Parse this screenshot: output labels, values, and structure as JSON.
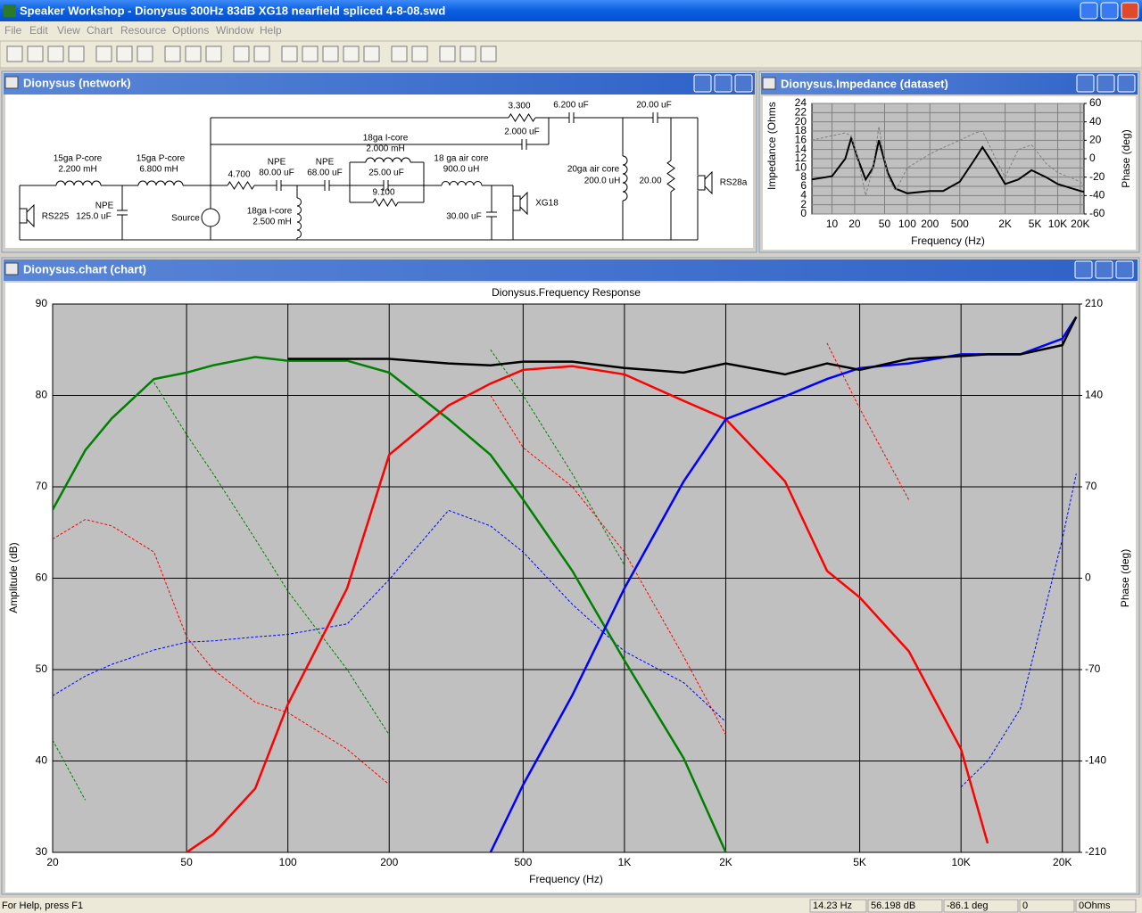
{
  "window": {
    "title": "Speaker Workshop - Dionysus 300Hz 83dB  XG18 nearfield spliced 4-8-08.swd",
    "menu": [
      "File",
      "Edit",
      "View",
      "Chart",
      "Resource",
      "Options",
      "Window",
      "Help"
    ],
    "status": [
      "For Help, press F1",
      "14.23 Hz",
      "56.198 dB",
      "-86.1 deg",
      "0",
      "0Ohms"
    ]
  },
  "panels": {
    "network": "Dionysus (network)",
    "impedance": "Dionysus.Impedance (dataset)",
    "chart": "Dionysus.chart (chart)"
  },
  "network": {
    "labels": [
      "15ga P-core",
      "2.200 mH",
      "15ga P-core",
      "6.800 mH",
      "NPE",
      "125.0 uF",
      "RS225",
      "Source",
      "4.700",
      "NPE",
      "80.00 uF",
      "NPE",
      "68.00 uF",
      "18ga I-core",
      "2.500 mH",
      "18ga I-core",
      "2.000 mH",
      "25.00 uF",
      "9.100",
      "18 ga air core",
      "900.0 uH",
      "30.00 uF",
      "XG18",
      "3.300",
      "2.000 uF",
      "6.200 uF",
      "20.00 uF",
      "20ga air core",
      "200.0 uH",
      "20.00",
      "RS28a"
    ]
  },
  "chart_data": [
    {
      "type": "line",
      "xlabel": "Frequency (Hz)",
      "ylabel": "Impedance (Ohms",
      "y2label": "Phase (deg)",
      "xscale": "log",
      "xlim": [
        5.4,
        22400
      ],
      "ylim": [
        0,
        24
      ],
      "y2lim": [
        -60,
        60
      ],
      "xticks": [
        10,
        20,
        50,
        100,
        200,
        500,
        {
          "value": 2000,
          "label": "2K"
        },
        {
          "value": 5000,
          "label": "5K"
        },
        {
          "value": 10000,
          "label": "10K"
        },
        {
          "value": 20000,
          "label": "20K"
        }
      ],
      "yticks": [
        0,
        2,
        4,
        6,
        8,
        10,
        12,
        14,
        16,
        18,
        20,
        22,
        24
      ],
      "y2ticks": [
        -60,
        -40,
        -20,
        0,
        20,
        40,
        60
      ],
      "grid": true,
      "grid_color": "#808080",
      "background": "#c0c0c0",
      "x": [
        5.4,
        10,
        15,
        18,
        22,
        28,
        35,
        42,
        55,
        70,
        100,
        200,
        300,
        500,
        800,
        1000,
        1500,
        2000,
        3000,
        4500,
        7000,
        10000,
        20000,
        22400
      ],
      "series": [
        {
          "color": "#000000",
          "linestyle": "solid",
          "values": [
            7.5,
            8.2,
            12,
            16.5,
            12,
            7.5,
            10,
            16,
            9,
            5.5,
            4.5,
            5,
            5,
            7,
            12,
            14.5,
            10,
            6.5,
            7.5,
            9.5,
            8,
            6.5,
            5,
            4.8
          ]
        },
        {
          "color": "#808080",
          "linestyle": "dashed",
          "axis": "y2",
          "values": [
            20,
            25,
            28,
            25,
            0,
            -40,
            -10,
            35,
            -20,
            -35,
            -10,
            5,
            12,
            20,
            28,
            30,
            0,
            -20,
            10,
            15,
            -5,
            -15,
            -25,
            -30
          ]
        }
      ]
    },
    {
      "type": "line",
      "title": "Dionysus.Frequency Response",
      "xlabel": "Frequency (Hz)",
      "ylabel": "Amplitude (dB)",
      "y2label": "Phase (deg)",
      "xscale": "log",
      "xlim": [
        20,
        22500
      ],
      "ylim": [
        30,
        90
      ],
      "y2lim": [
        -210,
        210
      ],
      "xticks": [
        20,
        50,
        100,
        200,
        500,
        {
          "value": 1000,
          "label": "1K"
        },
        {
          "value": 2000,
          "label": "2K"
        },
        {
          "value": 5000,
          "label": "5K"
        },
        {
          "value": 10000,
          "label": "10K"
        },
        {
          "value": 20000,
          "label": "20K"
        }
      ],
      "yticks": [
        30,
        40,
        50,
        60,
        70,
        80,
        90
      ],
      "y2ticks": [
        -210,
        -140,
        -70,
        0,
        70,
        140,
        210
      ],
      "grid": true,
      "grid_color": "#000000",
      "background": "#c0c0c0",
      "x": [
        20,
        25,
        30,
        40,
        50,
        60,
        80,
        100,
        150,
        200,
        300,
        400,
        500,
        700,
        1000,
        1500,
        2000,
        3000,
        4000,
        5000,
        7000,
        10000,
        12000,
        15000,
        20000,
        22000
      ],
      "series": [
        {
          "color": "#008000",
          "linestyle": "dashed",
          "axis": "y2",
          "values": [
            -124,
            -170,
            null,
            150,
            110,
            80,
            30,
            -10,
            -70,
            -120,
            null,
            175,
            140,
            80,
            10,
            null,
            null,
            null,
            null,
            null,
            null,
            null,
            null,
            null,
            null,
            null
          ]
        },
        {
          "color": "#ff0000",
          "linestyle": "dashed",
          "axis": "y2",
          "values": [
            30,
            45,
            40,
            20,
            -45,
            -70,
            -95,
            -103,
            -131,
            -158,
            null,
            140,
            100,
            70,
            20,
            -60,
            -120,
            null,
            180,
            130,
            60,
            null,
            null,
            null,
            null,
            null
          ]
        },
        {
          "color": "#0000ff",
          "linestyle": "dashed",
          "axis": "y2",
          "values": [
            -90,
            -75,
            -66,
            -55,
            -49,
            -48,
            -45,
            -43,
            -35,
            -1,
            52,
            40,
            20,
            -20,
            -56,
            -80,
            -110,
            null,
            null,
            null,
            null,
            -160,
            -140,
            -100,
            30,
            80
          ]
        },
        {
          "color": "#008000",
          "linestyle": "solid",
          "values": [
            67.5,
            74,
            77.5,
            81.8,
            82.5,
            83.3,
            84.2,
            83.8,
            83.8,
            82.5,
            77.4,
            73.5,
            68.6,
            60.8,
            51,
            40.3,
            30,
            null,
            null,
            null,
            null,
            null,
            null,
            null,
            null,
            null
          ]
        },
        {
          "color": "#ff0000",
          "linestyle": "solid",
          "values": [
            null,
            null,
            null,
            null,
            30,
            32,
            37,
            46.2,
            58.9,
            73.5,
            78.9,
            81.3,
            82.8,
            83.2,
            82.3,
            79.4,
            77.4,
            70.6,
            60.8,
            57.9,
            52,
            41.3,
            31,
            null,
            null,
            null
          ]
        },
        {
          "color": "#0000ff",
          "linestyle": "solid",
          "values": [
            null,
            null,
            null,
            null,
            null,
            null,
            null,
            null,
            null,
            null,
            null,
            30,
            37.4,
            47.2,
            58.9,
            70.6,
            77.4,
            79.9,
            81.8,
            83,
            83.5,
            84.5,
            84.5,
            84.5,
            86.2,
            88.6
          ]
        },
        {
          "color": "#000000",
          "linestyle": "solid",
          "values": [
            null,
            null,
            null,
            null,
            null,
            null,
            null,
            84,
            84,
            84,
            83.5,
            83.3,
            83.7,
            83.7,
            83,
            82.5,
            83.5,
            82.3,
            83.5,
            82.8,
            84,
            84.3,
            84.5,
            84.5,
            85.5,
            88.6
          ]
        }
      ]
    }
  ]
}
